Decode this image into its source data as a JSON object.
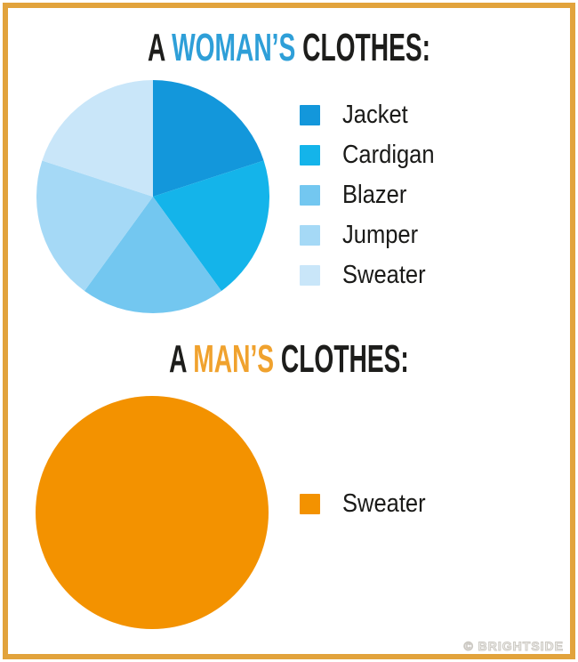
{
  "theme": {
    "background": "#FFFFFF",
    "border_orange": "#E2A33C",
    "text_black": "#1D1D1B",
    "accent_blue": "#2E9FD8",
    "accent_orange": "#F0A22E",
    "watermark_gray": "#CCC9C3"
  },
  "sections": [
    {
      "id": "woman",
      "title": {
        "prefix": "A",
        "highlight": "WOMAN’S",
        "suffix": "CLOTHES:",
        "highlight_color": "#2E9FD8"
      }
    },
    {
      "id": "man",
      "title": {
        "prefix": "A",
        "highlight": "MAN’S",
        "suffix": "CLOTHES:",
        "highlight_color": "#F0A22E"
      }
    }
  ],
  "chart_data": [
    {
      "type": "pie",
      "title": "A WOMAN’S CLOTHES:",
      "categories": [
        "Jacket",
        "Cardigan",
        "Blazer",
        "Jumper",
        "Sweater"
      ],
      "values": [
        20,
        20,
        20,
        20,
        20
      ],
      "colors": [
        "#1397DB",
        "#14B4EA",
        "#73C7F0",
        "#A5D9F6",
        "#C9E6F9"
      ],
      "legend_position": "right",
      "start_angle_deg": -90,
      "direction": "clockwise"
    },
    {
      "type": "pie",
      "title": "A MAN’S CLOTHES:",
      "categories": [
        "Sweater"
      ],
      "values": [
        100
      ],
      "colors": [
        "#F39200"
      ],
      "legend_position": "right",
      "start_angle_deg": -90,
      "direction": "clockwise"
    }
  ],
  "watermark": "© BRIGHTSIDE"
}
